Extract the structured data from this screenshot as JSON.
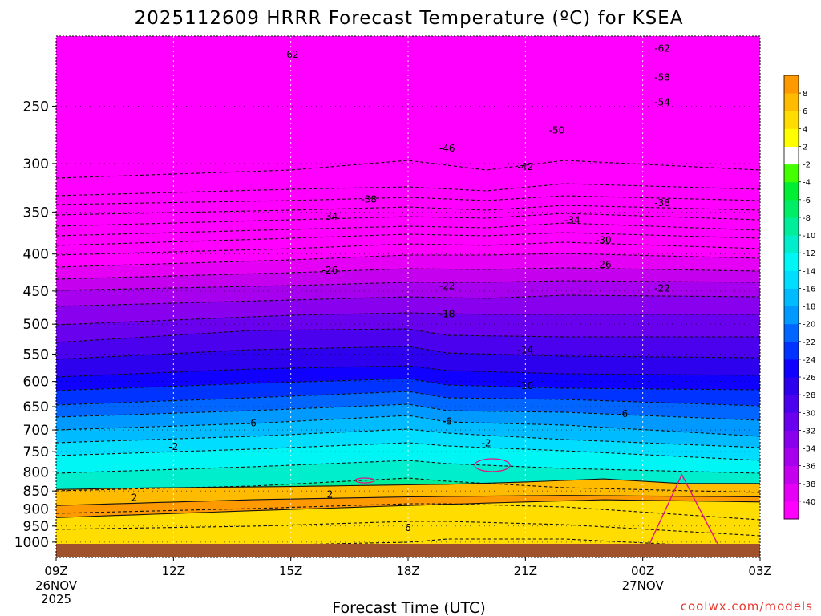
{
  "chart_data": {
    "type": "contour",
    "title": "2025112609 HRRR Forecast Temperature (ºC) for KSEA",
    "xlabel": "Forecast Time (UTC)",
    "ylabel": "",
    "credit": "coolwx.com/models",
    "x_ticks": [
      {
        "label": "09Z",
        "sub": [
          "26NOV",
          "2025"
        ]
      },
      {
        "label": "12Z",
        "sub": []
      },
      {
        "label": "15Z",
        "sub": []
      },
      {
        "label": "18Z",
        "sub": []
      },
      {
        "label": "21Z",
        "sub": []
      },
      {
        "label": "00Z",
        "sub": [
          "27NOV"
        ]
      },
      {
        "label": "03Z",
        "sub": []
      }
    ],
    "x_range_hours": [
      0,
      18
    ],
    "y_axis": "pressure (hPa)",
    "y_scale": "log",
    "y_range": [
      1050,
      200
    ],
    "y_ticks": [
      250,
      300,
      350,
      400,
      450,
      500,
      550,
      600,
      650,
      700,
      750,
      800,
      850,
      900,
      950,
      1000
    ],
    "colorbar": {
      "colors": [
        "#ff00ff",
        "#e500f5",
        "#c500ee",
        "#a600ee",
        "#8800ee",
        "#6900ee",
        "#4b00ee",
        "#2d00ee",
        "#0f00ff",
        "#0033ff",
        "#0066ff",
        "#0099ff",
        "#00bbff",
        "#00ddff",
        "#00f5f5",
        "#00eecc",
        "#00ee99",
        "#00ee66",
        "#00ee33",
        "#44ff00",
        "#ffffff",
        "#ffff00",
        "#ffdd00",
        "#ffbb00",
        "#ff9900"
      ],
      "labels": [
        "-40",
        "-38",
        "-36",
        "-34",
        "-32",
        "-30",
        "-28",
        "-26",
        "-24",
        "-22",
        "-20",
        "-18",
        "-16",
        "-14",
        "-12",
        "-10",
        "-8",
        "-6",
        "-4",
        "-2",
        "2",
        "4",
        "6",
        "8"
      ]
    },
    "contour_labels": [
      {
        "label": "-62",
        "hour": 6.0,
        "hpa": 212
      },
      {
        "label": "-62",
        "hour": 15.5,
        "hpa": 208
      },
      {
        "label": "-58",
        "hour": 15.5,
        "hpa": 228
      },
      {
        "label": "-54",
        "hour": 15.5,
        "hpa": 247
      },
      {
        "label": "-50",
        "hour": 12.8,
        "hpa": 270
      },
      {
        "label": "-46",
        "hour": 10.0,
        "hpa": 286
      },
      {
        "label": "-42",
        "hour": 12.0,
        "hpa": 303
      },
      {
        "label": "-38",
        "hour": 8.0,
        "hpa": 336
      },
      {
        "label": "-38",
        "hour": 15.5,
        "hpa": 340
      },
      {
        "label": "-34",
        "hour": 7.0,
        "hpa": 355
      },
      {
        "label": "-34",
        "hour": 13.2,
        "hpa": 359
      },
      {
        "label": "-30",
        "hour": 14.0,
        "hpa": 383
      },
      {
        "label": "-26",
        "hour": 7.0,
        "hpa": 421
      },
      {
        "label": "-26",
        "hour": 14.0,
        "hpa": 414
      },
      {
        "label": "-22",
        "hour": 10.0,
        "hpa": 443
      },
      {
        "label": "-22",
        "hour": 15.5,
        "hpa": 446
      },
      {
        "label": "-18",
        "hour": 10.0,
        "hpa": 484
      },
      {
        "label": "-14",
        "hour": 12.0,
        "hpa": 543
      },
      {
        "label": "-10",
        "hour": 12.0,
        "hpa": 608
      },
      {
        "label": "-6",
        "hour": 5.0,
        "hpa": 685
      },
      {
        "label": "-6",
        "hour": 10.0,
        "hpa": 681
      },
      {
        "label": "-6",
        "hour": 14.5,
        "hpa": 665
      },
      {
        "label": "-2",
        "hour": 3.0,
        "hpa": 738
      },
      {
        "label": "-2",
        "hour": 11.0,
        "hpa": 730
      },
      {
        "label": "2",
        "hour": 2.0,
        "hpa": 868
      },
      {
        "label": "2",
        "hour": 7.0,
        "hpa": 859
      },
      {
        "label": "6",
        "hour": 9.0,
        "hpa": 955
      }
    ]
  }
}
